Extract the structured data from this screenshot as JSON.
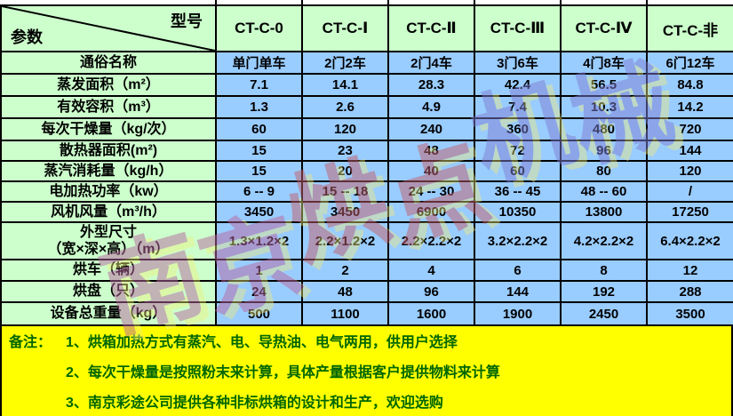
{
  "header": {
    "corner_model_label": "型号",
    "corner_param_label": "参数",
    "models": [
      "CT-C-0",
      "CT-C-Ⅰ",
      "CT-C-Ⅱ",
      "CT-C-Ⅲ",
      "CT-C-Ⅳ",
      "CT-C-非"
    ]
  },
  "table": {
    "rows": [
      {
        "label": "通俗名称",
        "values": [
          "单门单车",
          "2门2车",
          "2门4车",
          "3门6车",
          "4门8车",
          "6门12车"
        ]
      },
      {
        "label": "蒸发面积（m²）",
        "values": [
          "7.1",
          "14.1",
          "28.3",
          "42.4",
          "56.5",
          "84.8"
        ]
      },
      {
        "label": "有效容积（m³）",
        "values": [
          "1.3",
          "2.6",
          "4.9",
          "7.4",
          "10.3",
          "14.2"
        ]
      },
      {
        "label": "每次干燥量（kg/次）",
        "values": [
          "60",
          "120",
          "240",
          "360",
          "480",
          "720"
        ]
      },
      {
        "label": "散热器面积(m²)",
        "values": [
          "15",
          "23",
          "48",
          "72",
          "96",
          "144"
        ]
      },
      {
        "label": "蒸汽消耗量（kg/h）",
        "values": [
          "15",
          "20",
          "40",
          "60",
          "80",
          "120"
        ]
      },
      {
        "label": "电加热功率（kw）",
        "values": [
          "6 -- 9",
          "15 -- 18",
          "24 -- 30",
          "36 -- 45",
          "48 -- 60",
          "/"
        ]
      },
      {
        "label": "风机风量（m³/h）",
        "values": [
          "3450",
          "3450",
          "6900",
          "10350",
          "13800",
          "17250"
        ]
      },
      {
        "label": "外型尺寸\n（宽×深×高）（m）",
        "values": [
          "1.3×1.2×2",
          "2.2×1.2×2",
          "2.2×2.2×2",
          "3.2×2.2×2",
          "4.2×2.2×2",
          "6.4×2.2×2"
        ]
      },
      {
        "label": "烘车（辆）",
        "values": [
          "1",
          "2",
          "4",
          "6",
          "8",
          "12"
        ]
      },
      {
        "label": "烘盘（只）",
        "values": [
          "24",
          "48",
          "96",
          "144",
          "192",
          "288"
        ]
      },
      {
        "label": "设备总重量（kg）",
        "values": [
          "500",
          "1100",
          "1600",
          "1900",
          "2450",
          "3500"
        ]
      }
    ]
  },
  "notes": {
    "label": "备注：",
    "items": [
      "1、烘箱加热方式有蒸汽、电、导热油、电气两用，供用户选择",
      "2、每次干燥量是按照粉末来计算，具体产量根据客户提供物料来计算",
      "3、南京彩途公司提供各种非标烘箱的设计和生产，欢迎选购"
    ]
  },
  "watermark": {
    "chars": [
      {
        "ch": "南",
        "color": "#b8679f"
      },
      {
        "ch": "京",
        "color": "#b8679f"
      },
      {
        "ch": "烘",
        "color": "#c25f6a"
      },
      {
        "ch": "点",
        "color": "#c25f6a"
      },
      {
        "ch": "机",
        "color": "#7f7fd2"
      },
      {
        "ch": "械",
        "color": "#7f7fd2"
      }
    ]
  },
  "colors": {
    "label_bg": "#ccffcc",
    "value_bg": "#99ccff",
    "notes_bg": "#ffff00",
    "notes_text": "#006600",
    "border": "#000000"
  }
}
